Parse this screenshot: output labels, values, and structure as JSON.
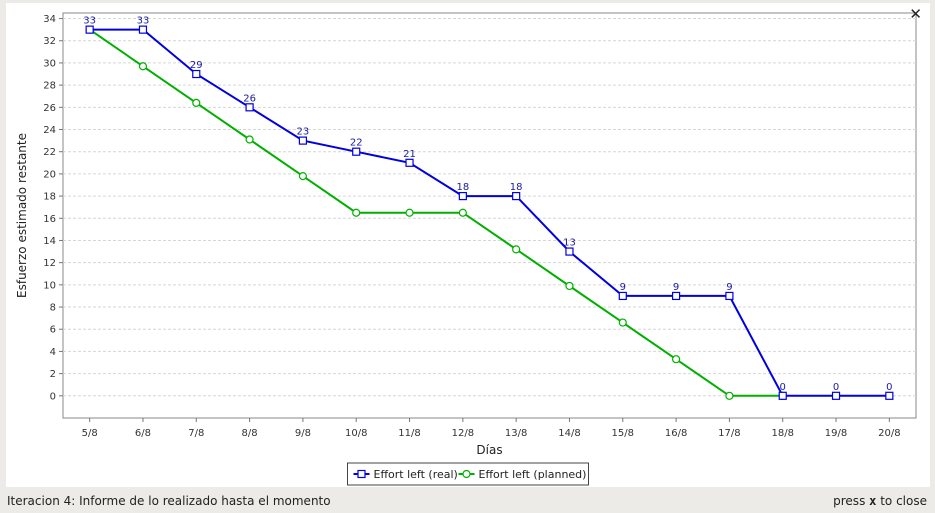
{
  "window": {
    "close_glyph": "✕"
  },
  "status_bar": {
    "left_text": "Iteracion 4: Informe de lo realizado hasta el momento",
    "right_prefix": "press",
    "right_key": "x",
    "right_suffix": "to close"
  },
  "chart_data": {
    "type": "line",
    "xlabel": "Días",
    "ylabel": "Esfuerzo estimado restante",
    "ylim": [
      -2,
      34.5
    ],
    "yticks": [
      0,
      2,
      4,
      6,
      8,
      10,
      12,
      14,
      16,
      18,
      20,
      22,
      24,
      26,
      28,
      30,
      32,
      34
    ],
    "categories": [
      "5/8",
      "6/8",
      "7/8",
      "8/8",
      "9/8",
      "10/8",
      "11/8",
      "12/8",
      "13/8",
      "14/8",
      "15/8",
      "16/8",
      "17/8",
      "18/8",
      "19/8",
      "20/8"
    ],
    "grid": true,
    "legend_position": "bottom-center",
    "series": [
      {
        "name": "Effort left (real)",
        "color": "#0000e0",
        "marker": "square",
        "show_labels": true,
        "values": [
          33,
          33,
          29,
          26,
          23,
          22,
          21,
          18,
          18,
          13,
          9,
          9,
          9,
          0,
          0,
          0
        ]
      },
      {
        "name": "Effort left (planned)",
        "color": "#00b000",
        "marker": "circle",
        "show_labels": false,
        "values": [
          33,
          29.7,
          26.4,
          23.1,
          19.8,
          16.5,
          16.5,
          16.5,
          13.2,
          9.9,
          6.6,
          3.3,
          0,
          0,
          null,
          null
        ]
      }
    ]
  }
}
